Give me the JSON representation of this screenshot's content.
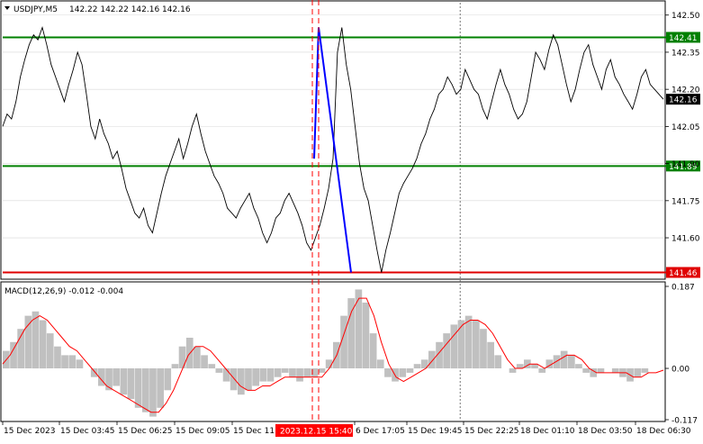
{
  "header": {
    "symbol_label": "USDJPY,M5",
    "ohlc": "142.22 142.22 142.16 142.16"
  },
  "macd_header": "MACD(12,26,9) -0.012 -0.004",
  "price_axis": {
    "ticks": [
      "142.50",
      "142.35",
      "142.20",
      "142.05",
      "141.90",
      "141.75",
      "141.60",
      "141.46"
    ],
    "current_price": "142.16"
  },
  "macd_axis": {
    "ticks": [
      "0.187",
      "0.00",
      "-0.117"
    ]
  },
  "levels": [
    {
      "label": "142.41",
      "price": 142.41,
      "color": "#008000"
    },
    {
      "label": "141.89",
      "price": 141.89,
      "color": "#008000"
    },
    {
      "label": "141.46",
      "price": 141.46,
      "color": "#e00000"
    }
  ],
  "time_axis": {
    "labels": [
      "15 Dec 2023",
      "15 Dec 03:45",
      "15 Dec 06:25",
      "15 Dec 09:05",
      "15 Dec 11:4",
      "6 Dec 17:05",
      "15 Dec 19:45",
      "15 Dec 22:25",
      "18 Dec 01:10",
      "18 Dec 03:50",
      "18 Dec 06:30"
    ],
    "highlight": "2023.12.15 15:40"
  },
  "colors": {
    "price_line": "#000000",
    "trend_line": "#0000ff",
    "macd_signal": "#ff0000",
    "macd_hist": "#c0c0c0",
    "cursor": "#ff0000",
    "highlight_bg": "#ff0000"
  },
  "chart_data": {
    "type": "line",
    "series": [
      {
        "y": [
          142.05,
          142.1,
          142.08,
          142.15,
          142.25,
          142.32,
          142.38,
          142.42,
          142.4,
          142.45,
          142.38,
          142.3,
          142.25,
          142.2,
          142.15,
          142.22,
          142.28,
          142.35,
          142.3,
          142.18,
          142.05,
          142.0,
          142.08,
          142.02,
          141.98,
          141.92,
          141.95,
          141.88,
          141.8,
          141.75,
          141.7,
          141.68,
          141.72,
          141.65,
          141.62,
          141.7,
          141.78,
          141.85,
          141.9,
          141.95,
          142.0,
          141.92,
          141.98,
          142.05,
          142.1,
          142.02,
          141.95,
          141.9,
          141.85,
          141.82,
          141.78,
          141.72,
          141.7,
          141.68,
          141.72,
          141.75,
          141.78,
          141.72,
          141.68,
          141.62,
          141.58,
          141.62,
          141.68,
          141.7,
          141.75,
          141.78,
          141.74,
          141.7,
          141.65,
          141.58,
          141.55,
          141.6,
          141.65,
          141.72,
          141.8,
          141.92,
          142.35,
          142.45,
          142.3,
          142.2,
          142.05,
          141.9,
          141.8,
          141.75,
          141.65,
          141.55,
          141.46,
          141.55,
          141.62,
          141.7,
          141.78,
          141.82,
          141.85,
          141.88,
          141.92,
          141.98,
          142.02,
          142.08,
          142.12,
          142.18,
          142.2,
          142.25,
          142.22,
          142.18,
          142.2,
          142.28,
          142.24,
          142.2,
          142.18,
          142.12,
          142.08,
          142.15,
          142.22,
          142.28,
          142.22,
          142.18,
          142.12,
          142.08,
          142.1,
          142.15,
          142.25,
          142.35,
          142.32,
          142.28,
          142.36,
          142.42,
          142.38,
          142.3,
          142.22,
          142.15,
          142.2,
          142.28,
          142.35,
          142.38,
          142.3,
          142.25,
          142.2,
          142.28,
          142.32,
          142.25,
          142.22,
          142.18,
          142.15,
          142.12,
          142.18,
          142.25,
          142.28,
          142.22,
          142.2,
          142.18,
          142.16
        ]
      },
      {
        "y": [
          141.92,
          142.45,
          141.46
        ]
      }
    ],
    "ylim": [
      141.44,
      142.55
    ],
    "macd": {
      "ylim": [
        -0.117,
        0.187
      ],
      "histogram": [
        0.04,
        0.06,
        0.09,
        0.12,
        0.13,
        0.11,
        0.08,
        0.05,
        0.03,
        0.03,
        0.02,
        0.0,
        -0.02,
        -0.04,
        -0.05,
        -0.04,
        -0.06,
        -0.07,
        -0.09,
        -0.1,
        -0.11,
        -0.09,
        -0.05,
        0.01,
        0.05,
        0.07,
        0.05,
        0.03,
        0.01,
        -0.01,
        -0.03,
        -0.05,
        -0.06,
        -0.05,
        -0.04,
        -0.03,
        -0.03,
        -0.02,
        -0.01,
        -0.02,
        -0.03,
        -0.02,
        -0.02,
        -0.01,
        0.02,
        0.06,
        0.12,
        0.16,
        0.18,
        0.15,
        0.08,
        0.02,
        -0.02,
        -0.03,
        -0.02,
        -0.01,
        0.01,
        0.02,
        0.04,
        0.06,
        0.08,
        0.1,
        0.11,
        0.12,
        0.11,
        0.09,
        0.06,
        0.03,
        0.0,
        -0.01,
        0.01,
        0.02,
        0.01,
        -0.01,
        0.02,
        0.03,
        0.04,
        0.03,
        0.01,
        -0.01,
        -0.02,
        -0.01,
        0.0,
        -0.01,
        -0.02,
        -0.03,
        -0.02,
        -0.01,
        0.0,
        0.0
      ],
      "signal": [
        0.01,
        0.03,
        0.06,
        0.09,
        0.11,
        0.12,
        0.11,
        0.09,
        0.07,
        0.05,
        0.04,
        0.02,
        0.0,
        -0.02,
        -0.04,
        -0.05,
        -0.06,
        -0.07,
        -0.08,
        -0.09,
        -0.1,
        -0.1,
        -0.08,
        -0.05,
        -0.01,
        0.03,
        0.05,
        0.05,
        0.04,
        0.02,
        0.0,
        -0.02,
        -0.04,
        -0.05,
        -0.05,
        -0.04,
        -0.04,
        -0.03,
        -0.02,
        -0.02,
        -0.02,
        -0.02,
        -0.02,
        -0.02,
        0.0,
        0.03,
        0.08,
        0.13,
        0.16,
        0.16,
        0.12,
        0.06,
        0.01,
        -0.02,
        -0.03,
        -0.02,
        -0.01,
        0.0,
        0.02,
        0.04,
        0.06,
        0.08,
        0.1,
        0.11,
        0.11,
        0.1,
        0.08,
        0.05,
        0.02,
        0.0,
        0.0,
        0.01,
        0.01,
        0.0,
        0.01,
        0.02,
        0.03,
        0.03,
        0.02,
        0.0,
        -0.01,
        -0.01,
        -0.01,
        -0.01,
        -0.01,
        -0.02,
        -0.02,
        -0.01,
        -0.01,
        -0.004
      ]
    }
  }
}
